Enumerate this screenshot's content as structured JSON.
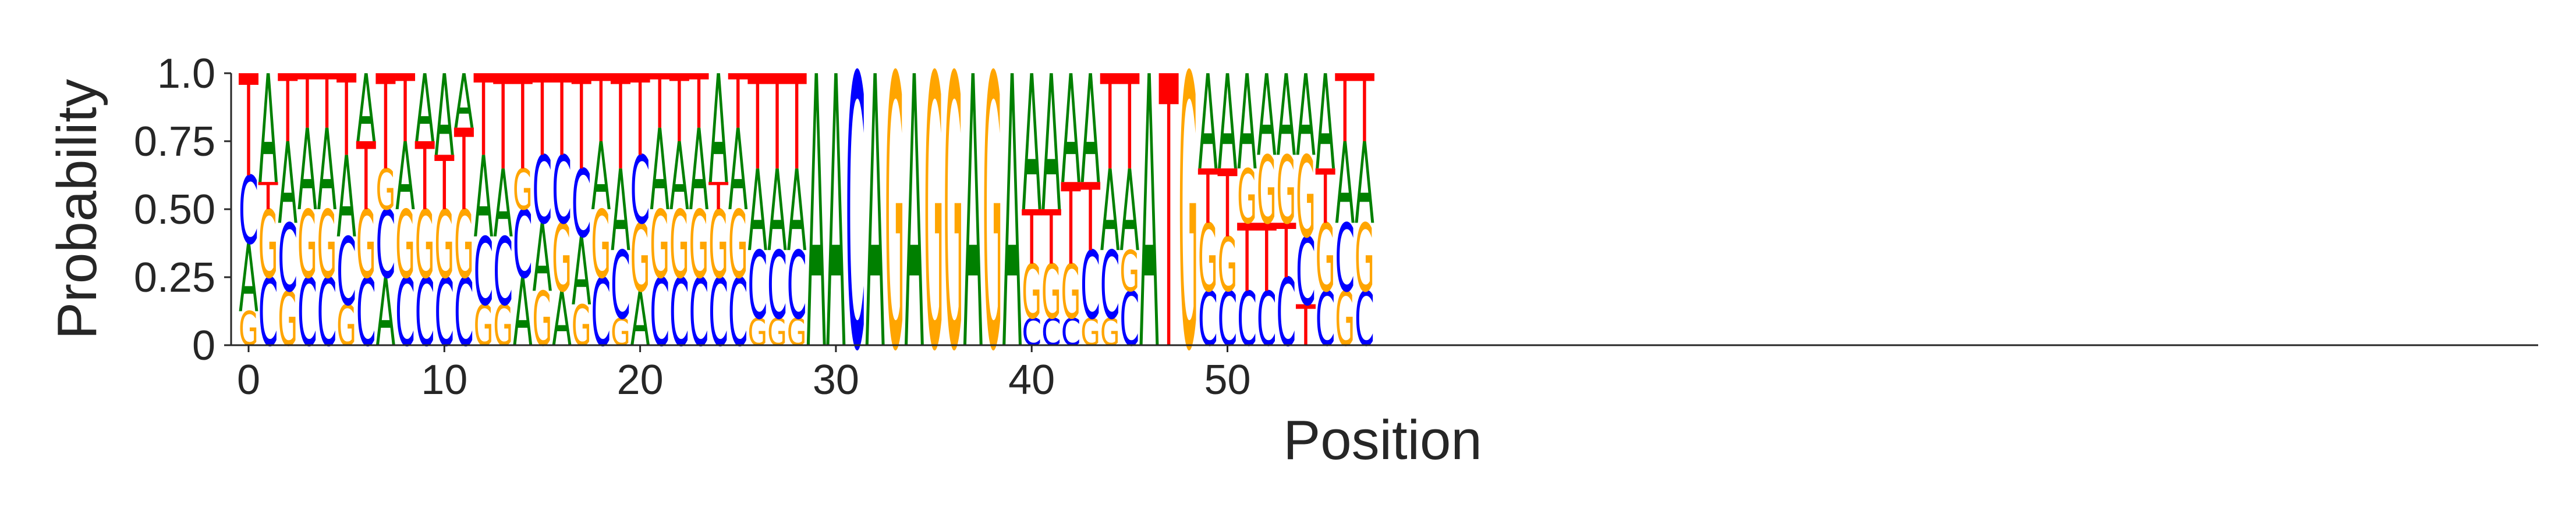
{
  "chart_data": {
    "type": "sequence-logo",
    "title": "",
    "xlabel": "Position",
    "ylabel": "Probability",
    "ylim": [
      0,
      1
    ],
    "yticks": [
      0,
      0.25,
      0.5,
      0.75,
      1.0
    ],
    "ytick_labels": [
      "0",
      "0.25",
      "0.50",
      "0.75",
      "1.0"
    ],
    "xticks": [
      0,
      10,
      20,
      30,
      40,
      50
    ],
    "xtick_labels": [
      "0",
      "10",
      "20",
      "30",
      "40",
      "50"
    ],
    "grid": false,
    "colors": {
      "A": "#008000",
      "C": "#0000ff",
      "G": "#ffa500",
      "T": "#ff0000"
    },
    "positions": [
      {
        "pos": 0,
        "G": 0.125,
        "A": 0.25,
        "C": 0.25,
        "T": 0.375
      },
      {
        "pos": 1,
        "C": 0.25,
        "G": 0.25,
        "T": 0.1,
        "A": 0.4
      },
      {
        "pos": 2,
        "G": 0.2,
        "C": 0.25,
        "A": 0.3,
        "T": 0.25
      },
      {
        "pos": 3,
        "C": 0.25,
        "G": 0.25,
        "A": 0.3,
        "T": 0.2
      },
      {
        "pos": 4,
        "C": 0.25,
        "G": 0.25,
        "A": 0.3,
        "T": 0.2
      },
      {
        "pos": 5,
        "G": 0.15,
        "C": 0.25,
        "A": 0.3,
        "T": 0.3
      },
      {
        "pos": 6,
        "C": 0.25,
        "G": 0.25,
        "T": 0.25,
        "A": 0.25
      },
      {
        "pos": 7,
        "A": 0.25,
        "C": 0.25,
        "G": 0.15,
        "T": 0.35
      },
      {
        "pos": 8,
        "C": 0.25,
        "G": 0.25,
        "A": 0.25,
        "T": 0.25
      },
      {
        "pos": 9,
        "C": 0.25,
        "G": 0.25,
        "T": 0.25,
        "A": 0.25
      },
      {
        "pos": 10,
        "C": 0.25,
        "G": 0.25,
        "T": 0.2,
        "A": 0.3
      },
      {
        "pos": 11,
        "C": 0.25,
        "G": 0.25,
        "T": 0.3,
        "A": 0.2
      },
      {
        "pos": 12,
        "G": 0.15,
        "C": 0.25,
        "A": 0.3,
        "T": 0.3
      },
      {
        "pos": 13,
        "G": 0.15,
        "C": 0.25,
        "A": 0.25,
        "T": 0.35
      },
      {
        "pos": 14,
        "A": 0.25,
        "C": 0.25,
        "G": 0.15,
        "T": 0.35
      },
      {
        "pos": 15,
        "G": 0.2,
        "A": 0.25,
        "C": 0.25,
        "T": 0.3
      },
      {
        "pos": 16,
        "A": 0.2,
        "G": 0.25,
        "C": 0.25,
        "T": 0.3
      },
      {
        "pos": 17,
        "G": 0.15,
        "A": 0.25,
        "C": 0.25,
        "T": 0.35
      },
      {
        "pos": 18,
        "C": 0.25,
        "G": 0.25,
        "A": 0.25,
        "T": 0.25
      },
      {
        "pos": 19,
        "G": 0.1,
        "C": 0.25,
        "A": 0.3,
        "T": 0.35
      },
      {
        "pos": 20,
        "A": 0.2,
        "G": 0.25,
        "C": 0.25,
        "T": 0.3
      },
      {
        "pos": 21,
        "C": 0.25,
        "G": 0.25,
        "A": 0.3,
        "T": 0.2
      },
      {
        "pos": 22,
        "C": 0.25,
        "G": 0.25,
        "A": 0.25,
        "T": 0.25
      },
      {
        "pos": 23,
        "C": 0.25,
        "G": 0.25,
        "A": 0.3,
        "T": 0.2
      },
      {
        "pos": 24,
        "C": 0.25,
        "G": 0.25,
        "T": 0.1,
        "A": 0.4
      },
      {
        "pos": 25,
        "C": 0.25,
        "G": 0.25,
        "A": 0.3,
        "T": 0.2
      },
      {
        "pos": 26,
        "G": 0.1,
        "C": 0.25,
        "A": 0.3,
        "T": 0.35
      },
      {
        "pos": 27,
        "G": 0.1,
        "C": 0.25,
        "A": 0.3,
        "T": 0.35
      },
      {
        "pos": 28,
        "G": 0.1,
        "C": 0.25,
        "A": 0.3,
        "T": 0.35
      },
      {
        "pos": 29,
        "A": 1.0
      },
      {
        "pos": 30,
        "A": 1.0
      },
      {
        "pos": 31,
        "C": 1.0
      },
      {
        "pos": 32,
        "A": 1.0
      },
      {
        "pos": 33,
        "G": 1.0
      },
      {
        "pos": 34,
        "A": 1.0
      },
      {
        "pos": 35,
        "G": 1.0
      },
      {
        "pos": 36,
        "G": 1.0
      },
      {
        "pos": 37,
        "A": 1.0
      },
      {
        "pos": 38,
        "G": 1.0
      },
      {
        "pos": 39,
        "A": 1.0
      },
      {
        "pos": 40,
        "C": 0.1,
        "G": 0.2,
        "T": 0.2,
        "A": 0.5
      },
      {
        "pos": 41,
        "C": 0.1,
        "G": 0.2,
        "T": 0.2,
        "A": 0.5
      },
      {
        "pos": 42,
        "C": 0.1,
        "G": 0.2,
        "T": 0.3,
        "A": 0.4
      },
      {
        "pos": 43,
        "G": 0.1,
        "C": 0.25,
        "T": 0.25,
        "A": 0.4
      },
      {
        "pos": 44,
        "G": 0.1,
        "C": 0.25,
        "A": 0.3,
        "T": 0.35
      },
      {
        "pos": 45,
        "C": 0.2,
        "G": 0.15,
        "A": 0.3,
        "T": 0.35
      },
      {
        "pos": 46,
        "A": 1.0
      },
      {
        "pos": 47,
        "T": 1.0
      },
      {
        "pos": 48,
        "G": 1.0
      },
      {
        "pos": 49,
        "C": 0.2,
        "G": 0.25,
        "T": 0.2,
        "A": 0.35
      },
      {
        "pos": 50,
        "C": 0.2,
        "G": 0.2,
        "T": 0.25,
        "A": 0.35
      },
      {
        "pos": 51,
        "C": 0.2,
        "T": 0.25,
        "G": 0.2,
        "A": 0.35
      },
      {
        "pos": 52,
        "C": 0.2,
        "T": 0.25,
        "G": 0.25,
        "A": 0.3
      },
      {
        "pos": 53,
        "C": 0.25,
        "T": 0.2,
        "G": 0.25,
        "A": 0.3
      },
      {
        "pos": 54,
        "T": 0.15,
        "C": 0.25,
        "G": 0.3,
        "A": 0.3
      },
      {
        "pos": 55,
        "C": 0.2,
        "G": 0.25,
        "T": 0.2,
        "A": 0.35
      },
      {
        "pos": 56,
        "G": 0.2,
        "C": 0.25,
        "A": 0.3,
        "T": 0.25
      },
      {
        "pos": 57,
        "C": 0.2,
        "G": 0.25,
        "A": 0.3,
        "T": 0.25
      }
    ]
  }
}
